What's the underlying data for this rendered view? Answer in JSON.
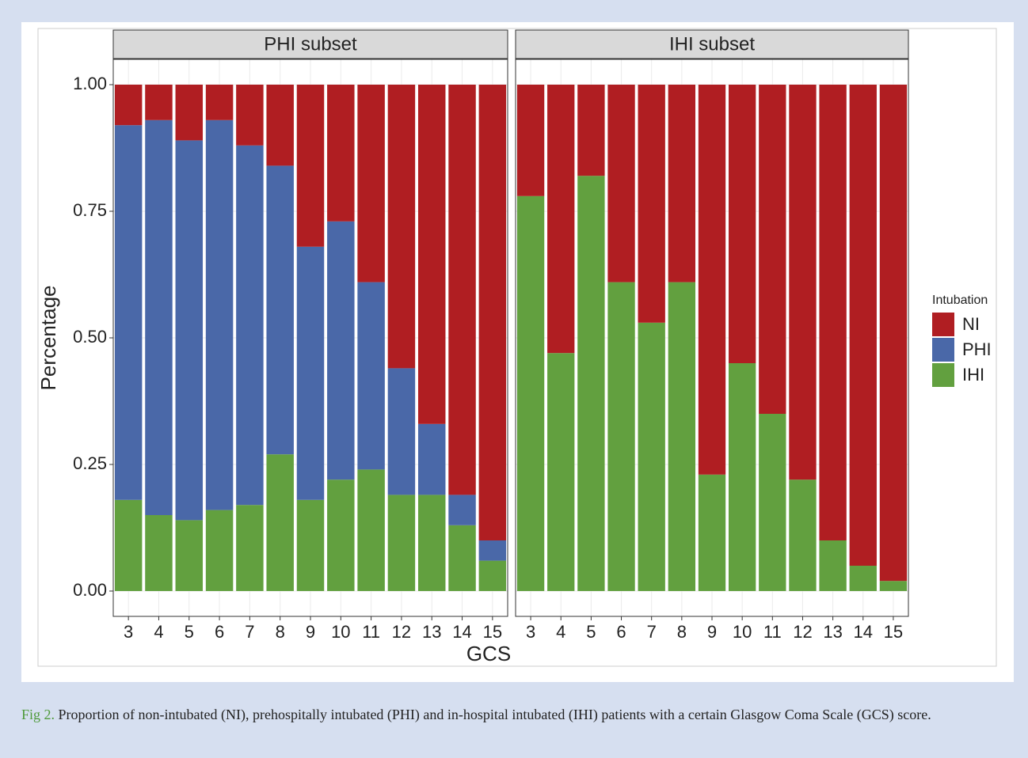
{
  "chart_data": {
    "type": "bar",
    "stacked": true,
    "x_label": "GCS",
    "y_label": "Percentage",
    "facets": [
      "PHI subset",
      "IHI subset"
    ],
    "categories": [
      "3",
      "4",
      "5",
      "6",
      "7",
      "8",
      "9",
      "10",
      "11",
      "12",
      "13",
      "14",
      "15"
    ],
    "series": [
      {
        "name": "NI",
        "color": "#b01e22",
        "values": [
          [
            0.08,
            0.07,
            0.11,
            0.07,
            0.12,
            0.16,
            0.32,
            0.27,
            0.39,
            0.56,
            0.67,
            0.81,
            0.9
          ],
          [
            0.22,
            0.53,
            0.18,
            0.39,
            0.47,
            0.39,
            0.77,
            0.55,
            0.65,
            0.78,
            0.9,
            0.95,
            0.98
          ]
        ]
      },
      {
        "name": "PHI",
        "color": "#4a68a8",
        "values": [
          [
            0.74,
            0.78,
            0.75,
            0.77,
            0.71,
            0.57,
            0.5,
            0.51,
            0.37,
            0.25,
            0.14,
            0.06,
            0.04
          ],
          [
            null,
            null,
            null,
            null,
            null,
            null,
            null,
            null,
            null,
            null,
            null,
            null,
            null
          ]
        ]
      },
      {
        "name": "IHI",
        "color": "#62a03f",
        "values": [
          [
            0.18,
            0.15,
            0.14,
            0.16,
            0.17,
            0.27,
            0.18,
            0.22,
            0.24,
            0.19,
            0.19,
            0.13,
            0.06
          ],
          [
            0.78,
            0.47,
            0.82,
            0.61,
            0.53,
            0.61,
            0.23,
            0.45,
            0.35,
            0.22,
            0.1,
            0.05,
            0.02
          ]
        ]
      }
    ],
    "ylim": [
      -0.05,
      1.05
    ],
    "yticks": [
      {
        "value": 0,
        "label": "0.00"
      },
      {
        "value": 0.25,
        "label": "0.25"
      },
      {
        "value": 0.5,
        "label": "0.50"
      },
      {
        "value": 0.75,
        "label": "0.75"
      },
      {
        "value": 1,
        "label": "1.00"
      }
    ],
    "grid": true,
    "legend": {
      "title": "Intubation",
      "position": "right"
    }
  },
  "caption": {
    "label": "Fig 2.",
    "text": "Proportion of non-intubated (NI), prehospitally intubated (PHI) and in-hospital intubated (IHI) patients with a certain Glasgow Coma Scale (GCS) score."
  }
}
